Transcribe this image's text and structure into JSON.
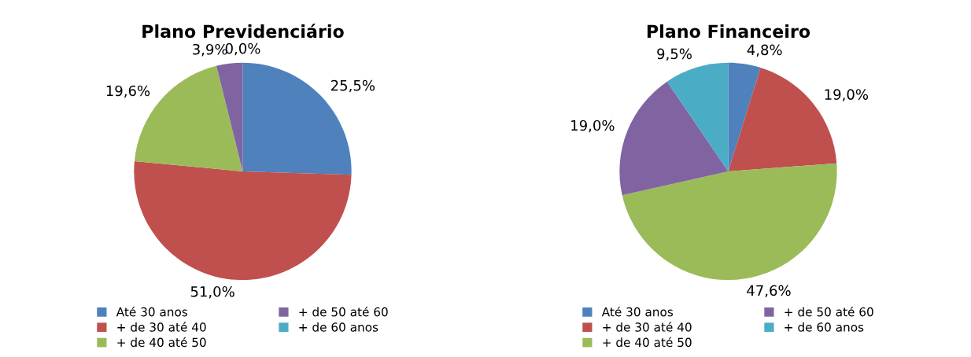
{
  "chart_data": [
    {
      "type": "pie",
      "title": "Plano Previdenciário",
      "categories": [
        "Até 30 anos",
        "+ de 30 até 40",
        "+ de 40 até 50",
        "+ de 50 até 60",
        "+ de 60 anos"
      ],
      "values": [
        25.5,
        51.0,
        19.6,
        3.9,
        0.0
      ],
      "colors": [
        "#4f81bd",
        "#c0504d",
        "#9bbb59",
        "#8064a2",
        "#4bacc6"
      ],
      "value_labels": [
        "25,5%",
        "51,0%",
        "19,6%",
        "3,9%",
        "0,0%"
      ],
      "legend": "bottom"
    },
    {
      "type": "pie",
      "title": "Plano Financeiro",
      "categories": [
        "Até 30 anos",
        "+ de 30 até 40",
        "+ de 40 até 50",
        "+ de 50 até 60",
        "+ de 60 anos"
      ],
      "values": [
        4.8,
        19.0,
        47.6,
        19.0,
        9.5
      ],
      "colors": [
        "#4f81bd",
        "#c0504d",
        "#9bbb59",
        "#8064a2",
        "#4bacc6"
      ],
      "value_labels": [
        "4,8%",
        "19,0%",
        "47,6%",
        "19,0%",
        "9,5%"
      ],
      "legend": "bottom"
    }
  ]
}
